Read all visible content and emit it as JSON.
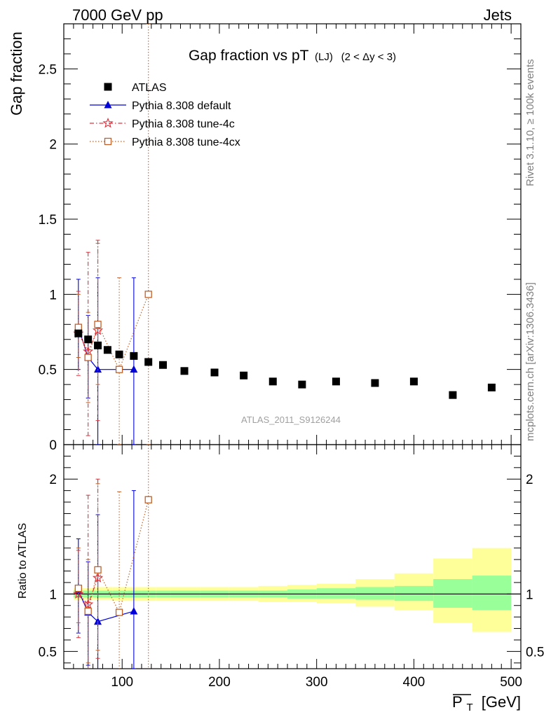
{
  "header": {
    "left": "7000 GeV pp",
    "right": "Jets"
  },
  "title": {
    "main": "Gap fraction vs pT",
    "sub": "(LJ)",
    "range": "(2 < Δy < 3)"
  },
  "side_labels": {
    "rivet": "Rivet 3.1.10, ≥ 100k events",
    "mcplots": "mcplots.cern.ch [arXiv:1306.3436]"
  },
  "analysis_tag": "ATLAS_2011_S9126244",
  "chart_data": {
    "type": "scatter",
    "xlabel": "P_T [GeV]",
    "xlabel_main": "P",
    "xlabel_sub": "T",
    "xlabel_unit": "[GeV]",
    "xlim": [
      40,
      510
    ],
    "x_ticks": [
      100,
      200,
      300,
      400,
      500
    ],
    "main_panel": {
      "ylabel": "Gap fraction",
      "ylim": [
        0,
        2.8
      ],
      "y_ticks": [
        0,
        0.5,
        1,
        1.5,
        2,
        2.5
      ],
      "y_tick_labels": [
        "0",
        "0.5",
        "1",
        "1.5",
        "2",
        "2.5"
      ],
      "series": [
        {
          "name": "ATLAS",
          "color": "#000000",
          "marker": "square",
          "line": "none",
          "x": [
            55,
            65,
            75,
            85,
            97,
            112,
            127,
            142,
            164,
            195,
            225,
            255,
            285,
            320,
            360,
            400,
            440,
            480
          ],
          "y": [
            0.74,
            0.7,
            0.66,
            0.63,
            0.6,
            0.59,
            0.55,
            0.53,
            0.49,
            0.48,
            0.46,
            0.42,
            0.4,
            0.42,
            0.41,
            0.42,
            0.33,
            0.38
          ]
        },
        {
          "name": "Pythia 8.308 default",
          "color": "#0000d8",
          "marker": "triangle",
          "line": "solid",
          "x": [
            55,
            65,
            75,
            112
          ],
          "y": [
            0.78,
            0.58,
            0.5,
            0.5
          ],
          "err_low": [
            0.28,
            0.27,
            0.5,
            0.5
          ],
          "err_high": [
            0.32,
            0.28,
            0.61,
            0.61
          ]
        },
        {
          "name": "Pythia 8.308 tune-4c",
          "color": "#e0303c",
          "marker": "star",
          "line": "dashdot",
          "x": [
            55,
            65,
            75
          ],
          "y": [
            0.74,
            0.62,
            0.76
          ],
          "err_low": [
            0.28,
            0.56,
            0.6
          ],
          "err_high": [
            0.28,
            0.66,
            0.6
          ]
        },
        {
          "name": "Pythia 8.308 tune-4cx",
          "color": "#c06028",
          "marker": "open-square",
          "line": "dotted",
          "x": [
            55,
            65,
            75,
            97,
            127
          ],
          "y": [
            0.78,
            0.58,
            0.8,
            0.5,
            1.0
          ],
          "err_low": [
            0.2,
            0.3,
            0.4,
            0.5,
            1.0
          ],
          "err_high": [
            0.22,
            0.3,
            0.54,
            0.61,
            1.8
          ]
        }
      ]
    },
    "ratio_panel": {
      "ylabel": "Ratio to ATLAS",
      "ylim": [
        0.35,
        2.3
      ],
      "y_ticks": [
        0.5,
        1,
        2
      ],
      "y_tick_labels": [
        "0.5",
        "1",
        "2"
      ],
      "reference_line": 1,
      "band_bins": [
        {
          "x0": 50,
          "x1": 60,
          "inner": [
            0.97,
            1.03
          ],
          "outer": [
            0.95,
            1.05
          ]
        },
        {
          "x0": 60,
          "x1": 70,
          "inner": [
            0.97,
            1.03
          ],
          "outer": [
            0.95,
            1.05
          ]
        },
        {
          "x0": 70,
          "x1": 80,
          "inner": [
            0.97,
            1.03
          ],
          "outer": [
            0.95,
            1.06
          ]
        },
        {
          "x0": 80,
          "x1": 90,
          "inner": [
            0.97,
            1.03
          ],
          "outer": [
            0.95,
            1.06
          ]
        },
        {
          "x0": 90,
          "x1": 105,
          "inner": [
            0.97,
            1.03
          ],
          "outer": [
            0.94,
            1.06
          ]
        },
        {
          "x0": 105,
          "x1": 120,
          "inner": [
            0.97,
            1.03
          ],
          "outer": [
            0.94,
            1.06
          ]
        },
        {
          "x0": 120,
          "x1": 135,
          "inner": [
            0.97,
            1.03
          ],
          "outer": [
            0.94,
            1.06
          ]
        },
        {
          "x0": 135,
          "x1": 150,
          "inner": [
            0.97,
            1.03
          ],
          "outer": [
            0.94,
            1.06
          ]
        },
        {
          "x0": 150,
          "x1": 180,
          "inner": [
            0.97,
            1.03
          ],
          "outer": [
            0.94,
            1.06
          ]
        },
        {
          "x0": 180,
          "x1": 210,
          "inner": [
            0.97,
            1.03
          ],
          "outer": [
            0.94,
            1.06
          ]
        },
        {
          "x0": 210,
          "x1": 240,
          "inner": [
            0.97,
            1.03
          ],
          "outer": [
            0.94,
            1.06
          ]
        },
        {
          "x0": 240,
          "x1": 270,
          "inner": [
            0.97,
            1.03
          ],
          "outer": [
            0.93,
            1.07
          ]
        },
        {
          "x0": 270,
          "x1": 300,
          "inner": [
            0.96,
            1.04
          ],
          "outer": [
            0.93,
            1.08
          ]
        },
        {
          "x0": 300,
          "x1": 340,
          "inner": [
            0.96,
            1.05
          ],
          "outer": [
            0.92,
            1.09
          ]
        },
        {
          "x0": 340,
          "x1": 380,
          "inner": [
            0.95,
            1.06
          ],
          "outer": [
            0.89,
            1.13
          ]
        },
        {
          "x0": 380,
          "x1": 420,
          "inner": [
            0.94,
            1.07
          ],
          "outer": [
            0.86,
            1.18
          ]
        },
        {
          "x0": 420,
          "x1": 460,
          "inner": [
            0.88,
            1.13
          ],
          "outer": [
            0.75,
            1.31
          ]
        },
        {
          "x0": 460,
          "x1": 500,
          "inner": [
            0.86,
            1.16
          ],
          "outer": [
            0.67,
            1.4
          ]
        }
      ],
      "band_colors": {
        "inner": "#99ff99",
        "outer": "#ffff99"
      },
      "series": [
        {
          "name": "Pythia 8.308 default",
          "color": "#0000d8",
          "marker": "triangle",
          "line": "solid",
          "x": [
            55,
            65,
            75,
            112
          ],
          "y": [
            1.03,
            0.84,
            0.76,
            0.85
          ],
          "err_low": [
            0.37,
            0.46,
            0.42,
            0.5
          ],
          "err_high": [
            0.45,
            0.44,
            0.93,
            1.05
          ]
        },
        {
          "name": "Pythia 8.308 tune-4c",
          "color": "#e0303c",
          "marker": "star",
          "line": "dashdot",
          "x": [
            55,
            65,
            75
          ],
          "y": [
            1.0,
            0.91,
            1.14
          ],
          "err_low": [
            0.38,
            0.7,
            0.7
          ],
          "err_high": [
            0.38,
            0.95,
            0.86
          ]
        },
        {
          "name": "Pythia 8.308 tune-4cx",
          "color": "#c06028",
          "marker": "open-square",
          "line": "dotted",
          "x": [
            55,
            65,
            75,
            97,
            127
          ],
          "y": [
            1.05,
            0.85,
            1.21,
            0.84,
            1.82
          ],
          "err_low": [
            0.3,
            0.45,
            0.7,
            0.84,
            1.82
          ],
          "err_high": [
            0.35,
            0.45,
            0.75,
            1.05,
            1.5
          ]
        }
      ]
    },
    "legend": {
      "placement": "top-left",
      "entries": [
        "ATLAS",
        "Pythia 8.308 default",
        "Pythia 8.308 tune-4c",
        "Pythia 8.308 tune-4cx"
      ]
    }
  }
}
